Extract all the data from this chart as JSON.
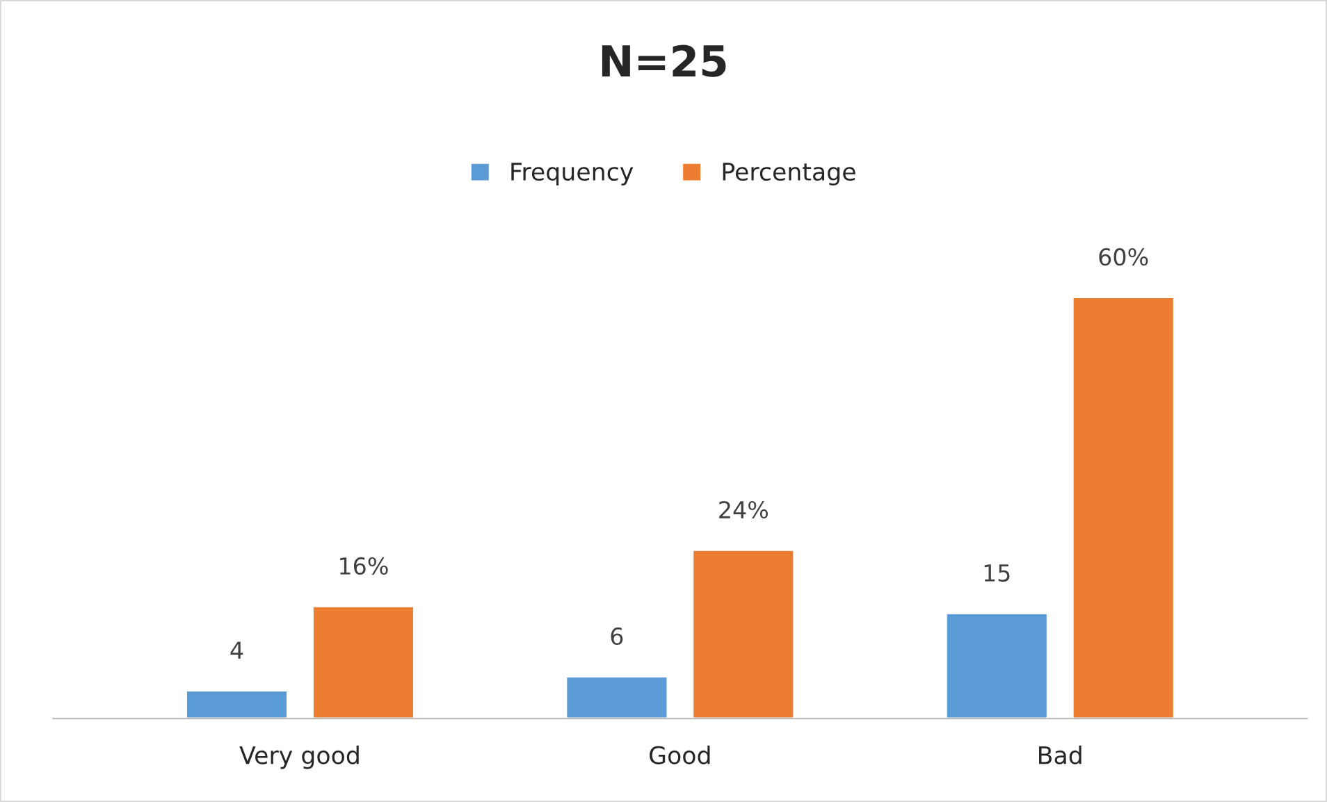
{
  "chart_data": {
    "type": "bar",
    "title": "N=25",
    "categories": [
      "Very good",
      "Good",
      "Bad"
    ],
    "series": [
      {
        "name": "Frequency",
        "color": "#5b9bd5",
        "values": [
          4,
          6,
          15
        ],
        "value_labels": [
          "4",
          "6",
          "15"
        ]
      },
      {
        "name": "Percentage",
        "color": "#ed7d31",
        "values": [
          16,
          24,
          60
        ],
        "value_labels": [
          "16%",
          "24%",
          "60%"
        ]
      }
    ],
    "legend": "top",
    "grid": false
  }
}
